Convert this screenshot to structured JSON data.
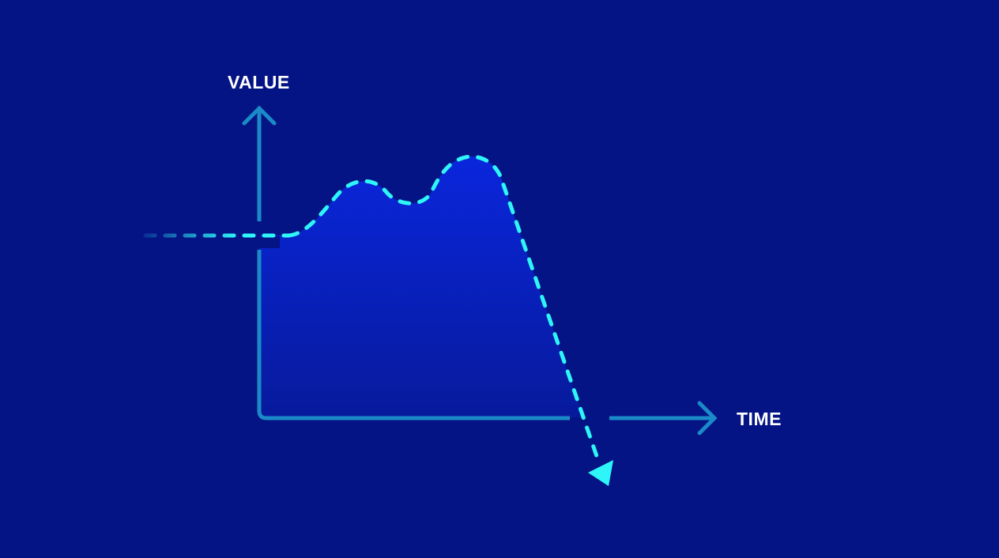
{
  "diagram": {
    "y_axis_label": "VALUE",
    "x_axis_label": "TIME"
  },
  "colors": {
    "background": "#051485",
    "axis": "#1a8ac8",
    "trend_line": "#2ef6f8",
    "area_fill_top": "#0a26dc",
    "area_fill_bottom": "#071a9c"
  }
}
